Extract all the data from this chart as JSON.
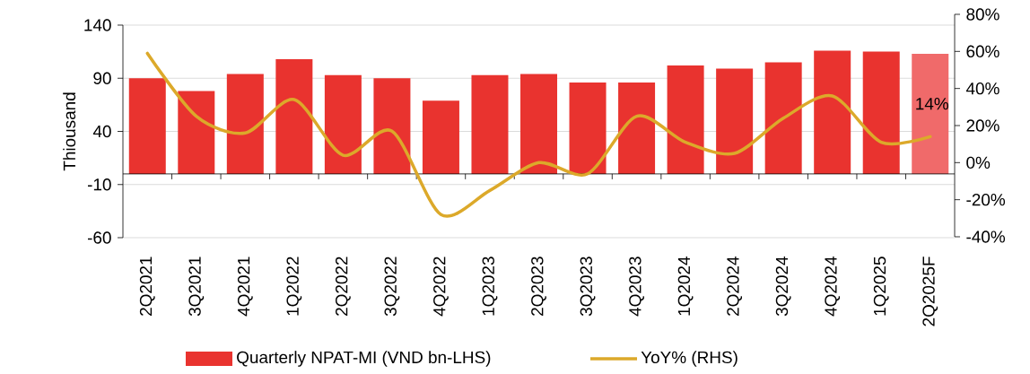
{
  "chart_data": {
    "type": "bar",
    "ylabel": "Thiousand",
    "categories": [
      "2Q2021",
      "3Q2021",
      "4Q2021",
      "1Q2022",
      "2Q2022",
      "3Q2022",
      "4Q2022",
      "1Q2023",
      "2Q2023",
      "3Q2023",
      "4Q2023",
      "1Q2024",
      "2Q2024",
      "3Q2024",
      "4Q2024",
      "1Q2025",
      "2Q2025F"
    ],
    "series": [
      {
        "name": "Quarterly NPAT-MI (VND  bn-LHS)",
        "color": "#e9332f",
        "colors": [
          "#e9332f",
          "#e9332f",
          "#e9332f",
          "#e9332f",
          "#e9332f",
          "#e9332f",
          "#e9332f",
          "#e9332f",
          "#e9332f",
          "#e9332f",
          "#e9332f",
          "#e9332f",
          "#e9332f",
          "#e9332f",
          "#e9332f",
          "#e9332f",
          "#f06a6a"
        ],
        "values": [
          90,
          78,
          94,
          108,
          93,
          90,
          69,
          93,
          94,
          86,
          86,
          102,
          99,
          105,
          116,
          115,
          113
        ]
      },
      {
        "name": "YoY% (RHS)",
        "type": "line",
        "axis": "y2",
        "color": "#dca92a",
        "values": [
          59,
          25,
          16,
          34,
          4,
          17,
          -28,
          -15,
          0,
          -6,
          25,
          11,
          5,
          24,
          36,
          11,
          14
        ]
      }
    ],
    "ylim": [
      -60,
      140
    ],
    "yticks": [
      -60,
      -10,
      40,
      90,
      140
    ],
    "y2lim": [
      -40,
      80
    ],
    "y2ticks": [
      {
        "value": -40,
        "label": "-40%"
      },
      {
        "value": -20,
        "label": "-20%"
      },
      {
        "value": 0,
        "label": "0%"
      },
      {
        "value": 20,
        "label": "20%"
      },
      {
        "value": 40,
        "label": "40%"
      },
      {
        "value": 60,
        "label": "60%"
      },
      {
        "value": 80,
        "label": "80%"
      }
    ],
    "grid": "y",
    "legend": "bottom",
    "annotations": [
      "14%"
    ]
  }
}
